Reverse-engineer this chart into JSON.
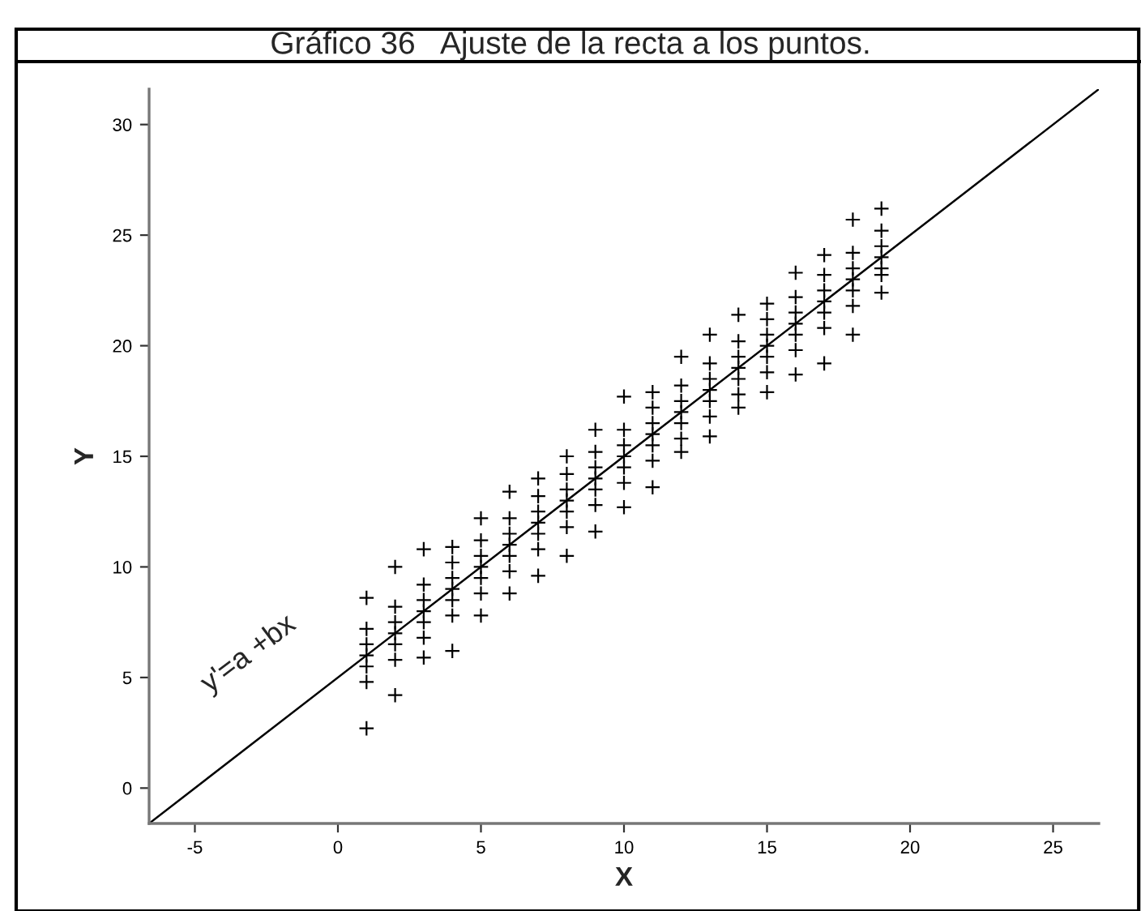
{
  "chart_data": {
    "type": "scatter",
    "title": "Gráfico 36   Ajuste de la recta a los puntos.",
    "xlabel": "X",
    "ylabel": "Y",
    "xlim": [
      -6.6,
      26.6
    ],
    "ylim": [
      -1.6,
      31.6
    ],
    "xticks": [
      -5,
      0,
      5,
      10,
      15,
      20,
      25
    ],
    "yticks": [
      0,
      5,
      10,
      15,
      20,
      25,
      30
    ],
    "grid": false,
    "annotations": [
      "y'=a +bx"
    ],
    "series": [
      {
        "marker": "cross",
        "color": "#000000",
        "x": [
          1,
          1,
          1,
          1,
          1,
          1,
          1,
          2,
          2,
          2,
          2,
          2,
          2,
          2,
          3,
          3,
          3,
          3,
          3,
          3,
          3,
          4,
          4,
          4,
          4,
          4,
          4,
          4,
          5,
          5,
          5,
          5,
          5,
          5,
          5,
          6,
          6,
          6,
          6,
          6,
          6,
          6,
          7,
          7,
          7,
          7,
          7,
          7,
          7,
          8,
          8,
          8,
          8,
          8,
          8,
          8,
          9,
          9,
          9,
          9,
          9,
          9,
          9,
          10,
          10,
          10,
          10,
          10,
          10,
          10,
          11,
          11,
          11,
          11,
          11,
          11,
          11,
          12,
          12,
          12,
          12,
          12,
          12,
          12,
          13,
          13,
          13,
          13,
          13,
          13,
          13,
          14,
          14,
          14,
          14,
          14,
          14,
          14,
          15,
          15,
          15,
          15,
          15,
          15,
          15,
          16,
          16,
          16,
          16,
          16,
          16,
          16,
          17,
          17,
          17,
          17,
          17,
          17,
          17,
          18,
          18,
          18,
          18,
          18,
          18,
          18,
          19,
          19,
          19,
          19,
          19,
          19,
          19
        ],
        "values": [
          2.7,
          4.8,
          5.5,
          6,
          6.5,
          7.2,
          8.6,
          4.2,
          5.8,
          6.5,
          7,
          7.5,
          8.2,
          10.0,
          5.9,
          6.8,
          7.5,
          8,
          8.5,
          9.2,
          10.8,
          6.2,
          7.8,
          8.5,
          9,
          9.5,
          10.2,
          10.9,
          7.8,
          8.8,
          9.5,
          10,
          10.5,
          11.2,
          12.2,
          8.8,
          9.8,
          10.5,
          11,
          11.5,
          12.2,
          13.4,
          9.6,
          10.8,
          11.5,
          12,
          12.5,
          13.2,
          14.0,
          10.5,
          11.8,
          12.5,
          13,
          13.5,
          14.2,
          15.0,
          11.6,
          12.8,
          13.5,
          14,
          14.5,
          15.2,
          16.2,
          12.7,
          13.8,
          14.5,
          15,
          15.5,
          16.2,
          17.7,
          13.6,
          14.8,
          15.5,
          16,
          16.5,
          17.2,
          17.9,
          15.2,
          15.8,
          16.5,
          17,
          17.5,
          18.2,
          19.5,
          15.9,
          16.8,
          17.5,
          18,
          18.5,
          19.2,
          20.5,
          17.2,
          17.8,
          18.5,
          19,
          19.5,
          20.2,
          21.4,
          17.9,
          18.8,
          19.5,
          20,
          20.5,
          21.2,
          21.9,
          18.7,
          19.8,
          20.5,
          21,
          21.5,
          22.2,
          23.3,
          19.2,
          20.8,
          21.5,
          22,
          22.5,
          23.2,
          24.1,
          20.5,
          21.8,
          22.5,
          23,
          23.5,
          24.2,
          25.7,
          22.4,
          23.2,
          23.5,
          24,
          24.5,
          25.2,
          26.2
        ]
      },
      {
        "type": "line",
        "marker": "none",
        "line_style": "solid",
        "color": "#000000",
        "x": [
          -6.6,
          26.6
        ],
        "values": [
          -1.6,
          31.6
        ]
      }
    ]
  }
}
